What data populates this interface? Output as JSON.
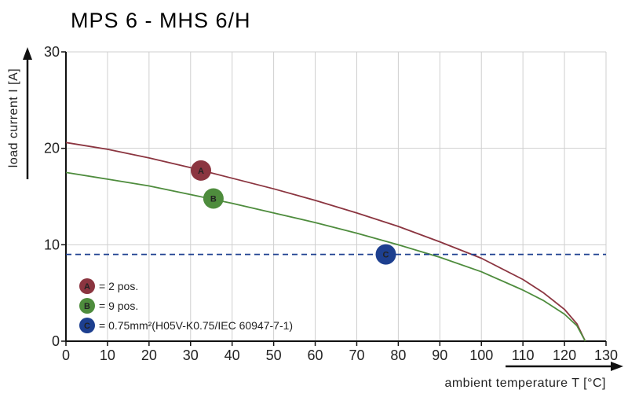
{
  "chart_data": {
    "type": "line",
    "title": "MPS 6 - MHS 6/H",
    "xlabel": "ambient temperature T [°C]",
    "ylabel": "load current I [A]",
    "xlim": [
      0,
      130
    ],
    "ylim": [
      0,
      30
    ],
    "x_ticks": [
      0,
      10,
      20,
      30,
      40,
      50,
      60,
      70,
      80,
      90,
      100,
      110,
      120,
      130
    ],
    "y_ticks": [
      0,
      10,
      20,
      30
    ],
    "grid": true,
    "legend_position": "bottom-left",
    "series": [
      {
        "marker": "A",
        "color": "#8b3540",
        "x": [
          0,
          10,
          20,
          30,
          40,
          50,
          60,
          70,
          80,
          90,
          100,
          110,
          115,
          120,
          123,
          125
        ],
        "y": [
          20.6,
          19.9,
          19.0,
          18.0,
          16.9,
          15.8,
          14.6,
          13.3,
          11.9,
          10.3,
          8.6,
          6.4,
          5.0,
          3.3,
          1.8,
          0
        ]
      },
      {
        "marker": "B",
        "color": "#4e8c3d",
        "x": [
          0,
          10,
          20,
          30,
          40,
          50,
          60,
          70,
          80,
          90,
          100,
          110,
          115,
          120,
          123,
          125
        ],
        "y": [
          17.5,
          16.8,
          16.1,
          15.2,
          14.3,
          13.3,
          12.3,
          11.2,
          10.0,
          8.7,
          7.2,
          5.3,
          4.2,
          2.8,
          1.6,
          0
        ]
      },
      {
        "marker": "C",
        "color": "#1d3f8f",
        "style": "dashed",
        "x": [
          0,
          130
        ],
        "y": [
          9,
          9
        ]
      }
    ],
    "markers": [
      {
        "label": "A",
        "x": 32.5,
        "y": 17.7,
        "color": "#8b3540"
      },
      {
        "label": "B",
        "x": 35.5,
        "y": 14.8,
        "color": "#4e8c3d"
      },
      {
        "label": "C",
        "x": 77,
        "y": 9,
        "color": "#1d3f8f"
      }
    ],
    "legend": [
      {
        "label": "A",
        "text": "= 2 pos.",
        "color": "#8b3540"
      },
      {
        "label": "B",
        "text": "= 9 pos.",
        "color": "#4e8c3d"
      },
      {
        "label": "C",
        "text": "= 0.75mm²(H05V-K0.75/IEC 60947-7-1)",
        "color": "#1d3f8f"
      }
    ]
  }
}
